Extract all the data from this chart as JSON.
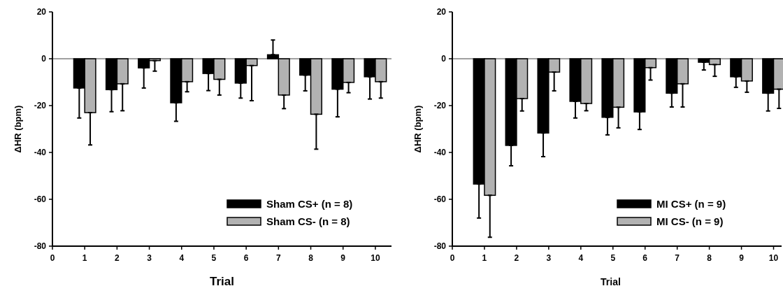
{
  "chart_data": [
    {
      "type": "bar",
      "xlabel": "Trial",
      "ylabel": "ΔHR (bpm)",
      "x": [
        1,
        2,
        3,
        4,
        5,
        6,
        7,
        8,
        9,
        10
      ],
      "xlim": [
        0,
        10.5
      ],
      "xticks": [
        0,
        1,
        2,
        3,
        4,
        5,
        6,
        7,
        8,
        9,
        10
      ],
      "ylim": [
        -80,
        20
      ],
      "yticks": [
        -80,
        -60,
        -40,
        -20,
        0,
        20
      ],
      "legend": "bottom right",
      "ref_lines": [
        {
          "axis": "y",
          "value": 0,
          "color": "#808080"
        }
      ],
      "series": [
        {
          "name": "Sham CS+ (n = 8)",
          "color": "#000000",
          "values": [
            -12.5,
            -13.2,
            -3.9,
            -18.8,
            -6.3,
            -10.4,
            1.7,
            -7,
            -13,
            -7.7
          ],
          "errors": [
            [
              -25.3,
              -12.5
            ],
            [
              -22.6,
              -13.2
            ],
            [
              -12.5,
              -3.9
            ],
            [
              -26.7,
              -18.8
            ],
            [
              -13.6,
              -6.3
            ],
            [
              -16.8,
              -10.4
            ],
            [
              1.7,
              8
            ],
            [
              -13.7,
              -7
            ],
            [
              -24.8,
              -13
            ],
            [
              -17.2,
              -7.7
            ]
          ]
        },
        {
          "name": "Sham CS- (n = 8)",
          "color": "#b2b2b2",
          "values": [
            -23,
            -10.7,
            -0.8,
            -9.8,
            -8.8,
            -2.9,
            -15.5,
            -23.7,
            -10.1,
            -9.8
          ],
          "errors": [
            [
              -36.8,
              -23
            ],
            [
              -22.2,
              -10.7
            ],
            [
              -5.3,
              -0.8
            ],
            [
              -14.1,
              -9.8
            ],
            [
              -15.5,
              -8.8
            ],
            [
              -17.9,
              -2.9
            ],
            [
              -21.3,
              -15.5
            ],
            [
              -38.6,
              -23.7
            ],
            [
              -14.5,
              -10.1
            ],
            [
              -16.8,
              -9.8
            ]
          ]
        }
      ]
    },
    {
      "type": "bar",
      "xlabel": "Trial",
      "ylabel": "ΔHR (bpm)",
      "x": [
        1,
        2,
        3,
        4,
        5,
        6,
        7,
        8,
        9,
        10
      ],
      "xlim": [
        0,
        10.25
      ],
      "xticks": [
        0,
        1,
        2,
        3,
        4,
        5,
        6,
        7,
        8,
        9,
        10
      ],
      "ylim": [
        -80,
        20
      ],
      "yticks": [
        -80,
        -60,
        -40,
        -20,
        0,
        20
      ],
      "legend": "bottom right",
      "ref_lines": [
        {
          "axis": "y",
          "value": 0,
          "color": "#808080"
        }
      ],
      "series": [
        {
          "name": "MI CS+ (n = 9)",
          "color": "#000000",
          "values": [
            -53.5,
            -37,
            -31.7,
            -18.2,
            -25,
            -22.7,
            -14.7,
            -1.5,
            -7.7,
            -14.7
          ],
          "errors": [
            [
              -68,
              -53.5
            ],
            [
              -45.7,
              -37
            ],
            [
              -41.8,
              -31.7
            ],
            [
              -25.3,
              -18.2
            ],
            [
              -32.5,
              -25
            ],
            [
              -30.2,
              -22.7
            ],
            [
              -20.6,
              -14.7
            ],
            [
              -4.8,
              -1.5
            ],
            [
              -12.2,
              -7.7
            ],
            [
              -22.3,
              -14.7
            ]
          ]
        },
        {
          "name": "MI CS- (n = 9)",
          "color": "#b2b2b2",
          "values": [
            -58.3,
            -17,
            -5.7,
            -19.1,
            -20.7,
            -3.8,
            -10.7,
            -2.5,
            -9.5,
            -13
          ],
          "errors": [
            [
              -76.2,
              -58.3
            ],
            [
              -22.3,
              -17
            ],
            [
              -13.7,
              -5.7
            ],
            [
              -22.2,
              -19.1
            ],
            [
              -29.5,
              -20.7
            ],
            [
              -9.1,
              -3.8
            ],
            [
              -20.6,
              -10.7
            ],
            [
              -7.5,
              -2.5
            ],
            [
              -14.3,
              -9.5
            ],
            [
              -21.2,
              -13
            ]
          ]
        }
      ]
    }
  ]
}
